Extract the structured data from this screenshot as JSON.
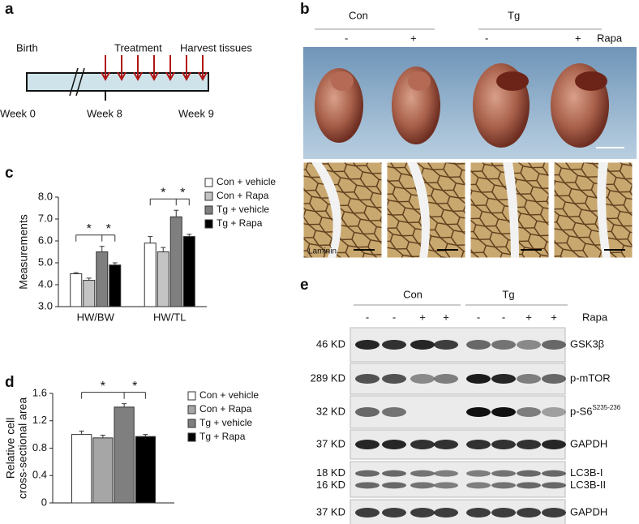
{
  "panels": {
    "a": "a",
    "b": "b",
    "c": "c",
    "d": "d",
    "e": "e"
  },
  "timeline": {
    "birth": "Birth",
    "treatment": "Treatment",
    "harvest": "Harvest tissues",
    "weeks": [
      "Week 0",
      "Week 8",
      "Week 9"
    ]
  },
  "hearts": {
    "groups": [
      "Con",
      "Tg"
    ],
    "rapa_signs": [
      "-",
      "+",
      "-",
      "+"
    ],
    "rapa_label": "Rapa",
    "stain": "Laminin"
  },
  "chart_data": [
    {
      "type": "bar",
      "ylabel": [
        "Measurements"
      ],
      "categories": [
        "HW/BW",
        "HW/TL"
      ],
      "series": [
        {
          "name": "Con + vehicle",
          "color": "#ffffff",
          "values": [
            4.5,
            5.9
          ],
          "errors": [
            0.05,
            0.3
          ]
        },
        {
          "name": "Con + Rapa",
          "color": "#c4c4c4",
          "values": [
            4.2,
            5.5
          ],
          "errors": [
            0.1,
            0.2
          ]
        },
        {
          "name": "Tg + vehicle",
          "color": "#7f7f7f",
          "values": [
            5.5,
            7.1
          ],
          "errors": [
            0.25,
            0.3
          ]
        },
        {
          "name": "Tg + Rapa",
          "color": "#000000",
          "values": [
            4.9,
            6.2
          ],
          "errors": [
            0.1,
            0.1
          ]
        }
      ],
      "ylim": [
        3,
        8
      ],
      "yticks": [
        {
          "value": 3,
          "label": "3.0"
        },
        {
          "value": 4,
          "label": "4.0"
        },
        {
          "value": 5,
          "label": "5.0"
        },
        {
          "value": 6,
          "label": "6.0"
        },
        {
          "value": 7,
          "label": "7.0"
        },
        {
          "value": 8,
          "label": "8.0"
        }
      ],
      "significance": [
        [
          "*",
          "*"
        ],
        [
          "*",
          "*"
        ]
      ]
    },
    {
      "type": "bar",
      "ylabel": [
        "Relative cell",
        "cross-sectional area"
      ],
      "series": [
        {
          "name": "Con + vehicle",
          "color": "#ffffff",
          "values": [
            1.0
          ],
          "errors": [
            0.05
          ]
        },
        {
          "name": "Con + Rapa",
          "color": "#a6a6a6",
          "values": [
            0.95
          ],
          "errors": [
            0.04
          ]
        },
        {
          "name": "Tg + vehicle",
          "color": "#7f7f7f",
          "values": [
            1.4
          ],
          "errors": [
            0.05
          ]
        },
        {
          "name": "Tg + Rapa",
          "color": "#000000",
          "values": [
            0.97
          ],
          "errors": [
            0.03
          ]
        }
      ],
      "ylim": [
        0,
        1.6
      ],
      "yticks": [
        0,
        0.4,
        0.8,
        1.2,
        1.6
      ],
      "significance": [
        [
          "*",
          "*"
        ]
      ]
    }
  ],
  "western": {
    "groups": [
      "Con",
      "Tg"
    ],
    "rapa_label": "Rapa",
    "rapa_signs": [
      "-",
      "-",
      "+",
      "+",
      "-",
      "-",
      "+",
      "+"
    ],
    "rows": [
      {
        "sizes": [
          "46 KD"
        ],
        "proteins": [
          "GSK3β"
        ]
      },
      {
        "sizes": [
          "289 KD"
        ],
        "proteins": [
          "p-mTOR"
        ]
      },
      {
        "sizes": [
          "32 KD"
        ],
        "proteins": [
          "p-S6"
        ],
        "superscript": "S235-236"
      },
      {
        "sizes": [
          "37 KD"
        ],
        "proteins": [
          "GAPDH"
        ]
      },
      {
        "sizes": [
          "18 KD",
          "16 KD"
        ],
        "proteins": [
          "LC3B-I",
          "LC3B-II"
        ]
      },
      {
        "sizes": [
          "37 KD"
        ],
        "proteins": [
          "GAPDH"
        ]
      }
    ]
  }
}
